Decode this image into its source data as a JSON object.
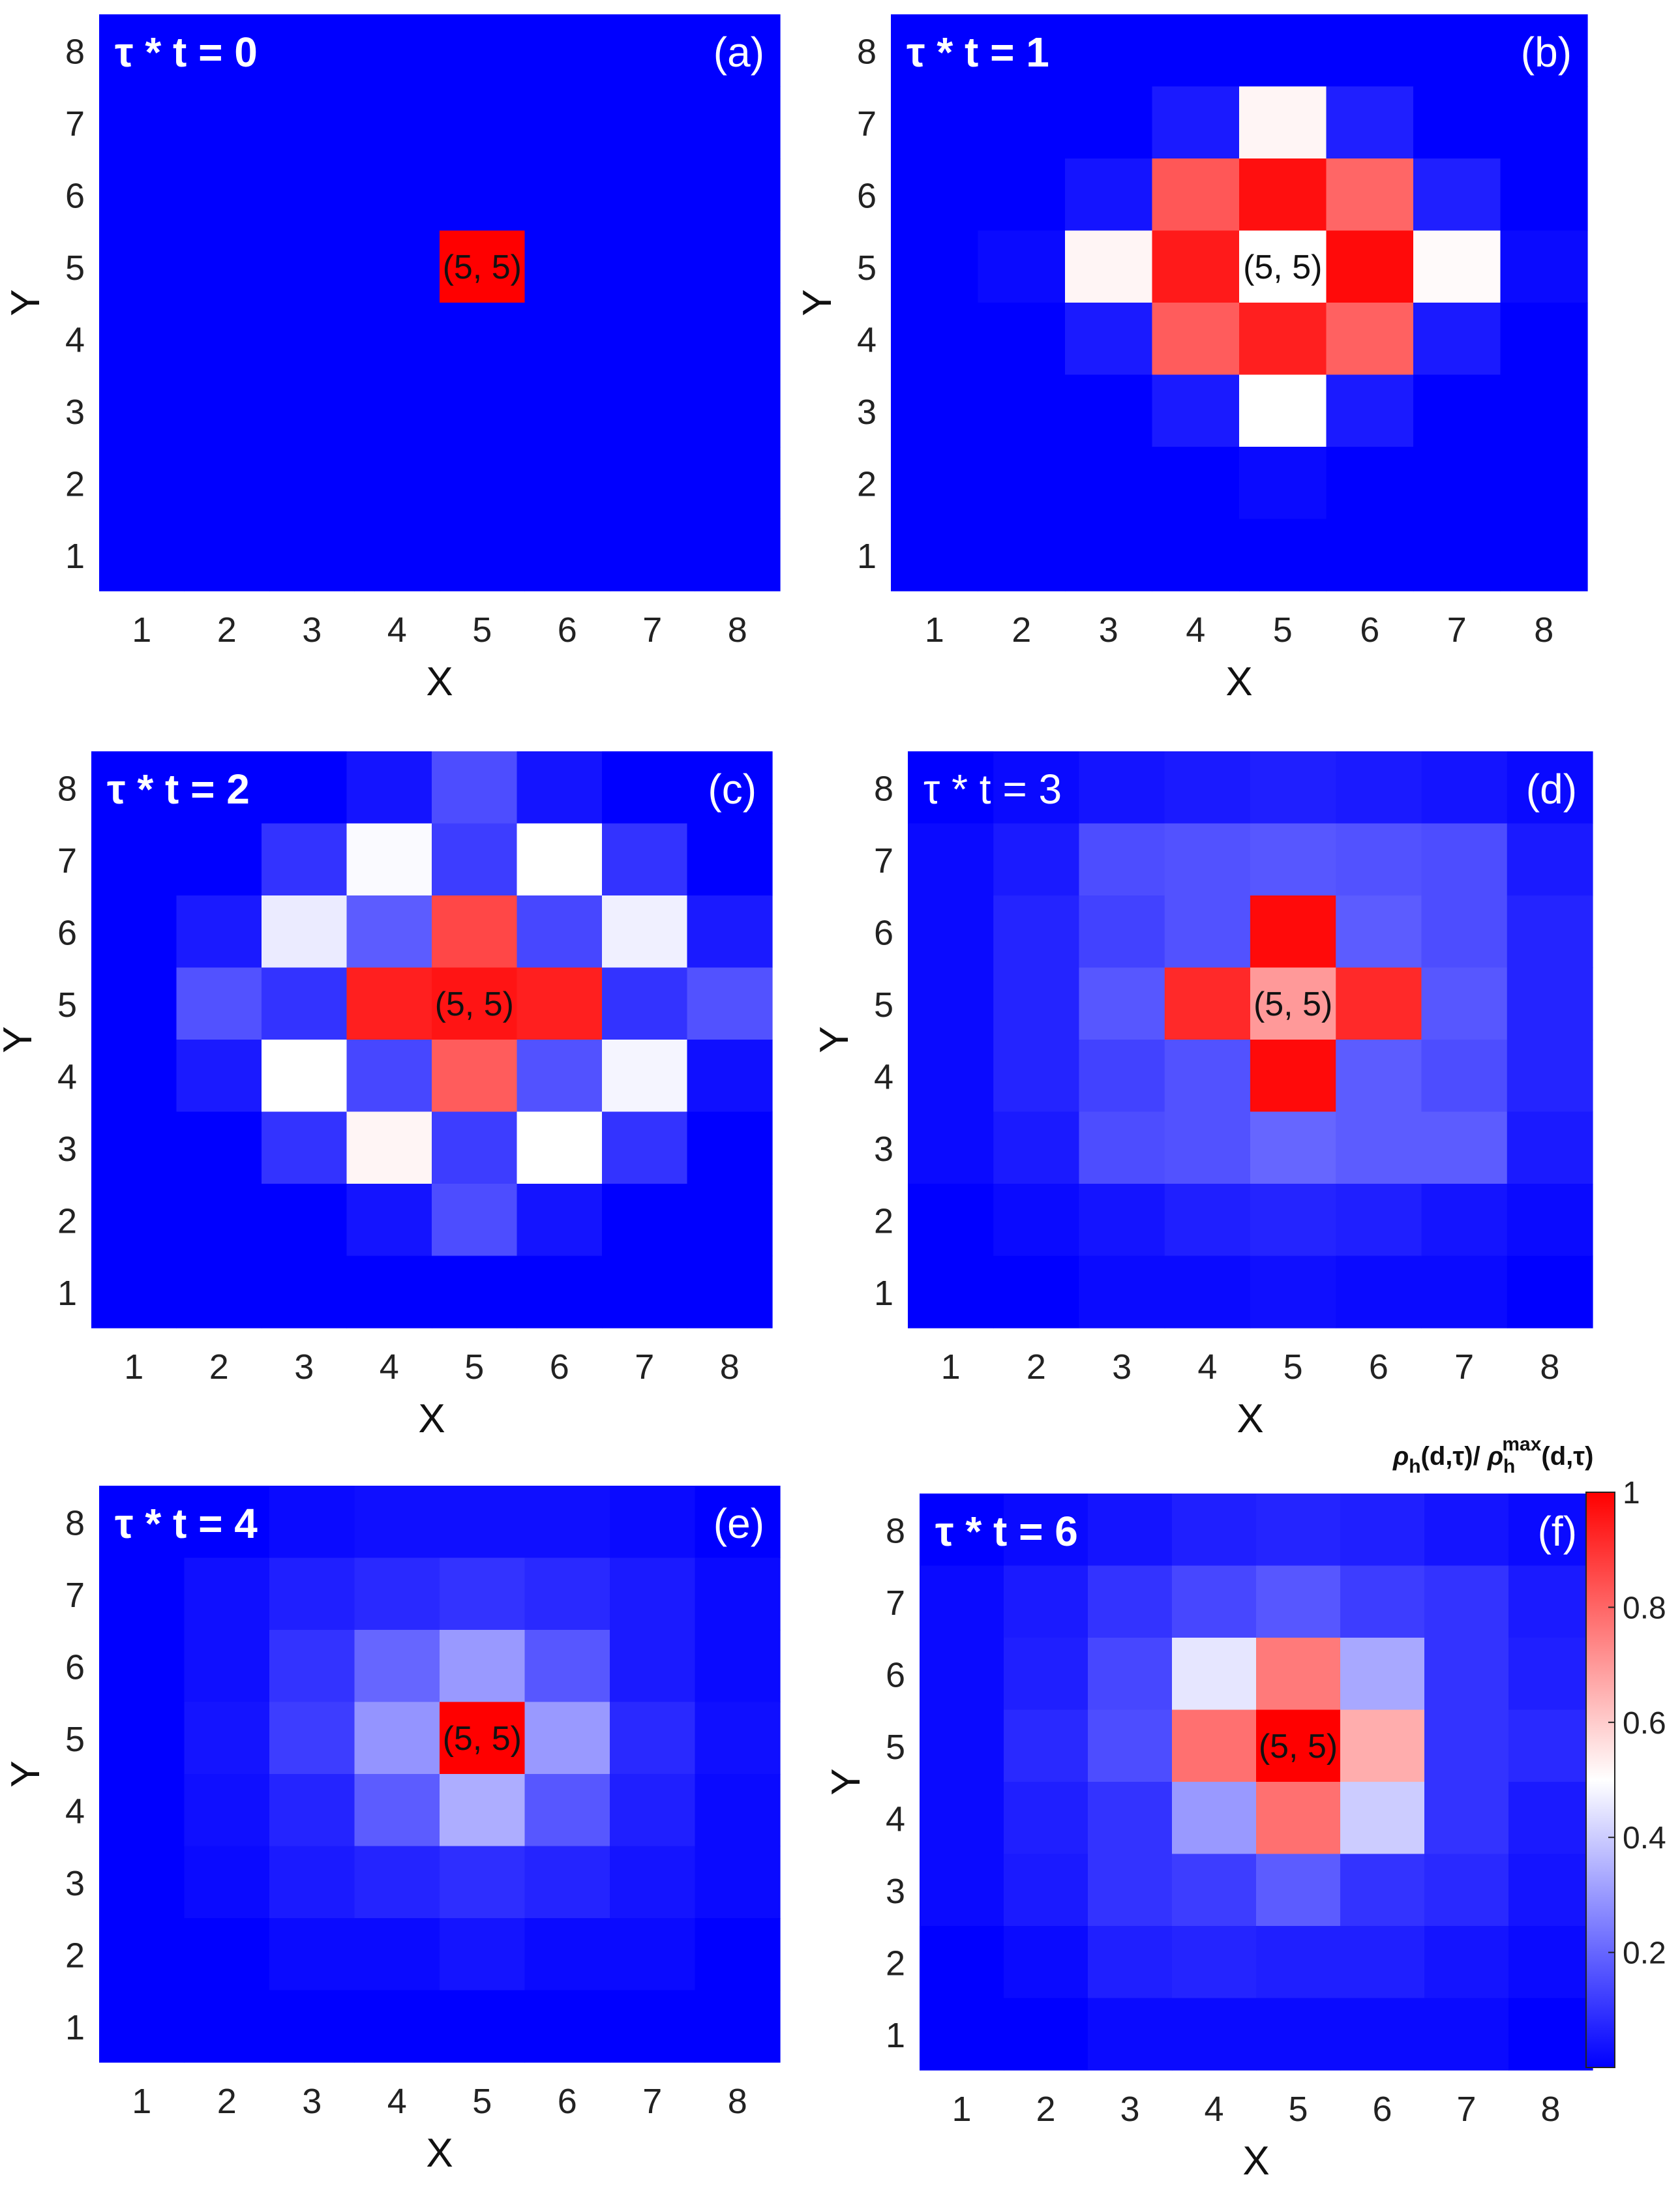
{
  "chart_data": [
    {
      "type": "heatmap",
      "panel_label": "(a)",
      "title": "τ * t = 0",
      "title_style": "bold",
      "xlabel": "X",
      "ylabel": "Y",
      "x_ticks": [
        "1",
        "2",
        "3",
        "4",
        "5",
        "6",
        "7",
        "8"
      ],
      "y_ticks": [
        "1",
        "2",
        "3",
        "4",
        "5",
        "6",
        "7",
        "8"
      ],
      "xlim": [
        0.5,
        8.5
      ],
      "ylim": [
        0.5,
        8.5
      ],
      "center_label": "(5, 5)",
      "center": [
        5,
        5
      ],
      "rows_y8_to_y1": [
        [
          0,
          0,
          0,
          0,
          0,
          0,
          0,
          0
        ],
        [
          0,
          0,
          0,
          0,
          0,
          0,
          0,
          0
        ],
        [
          0,
          0,
          0,
          0,
          0,
          0,
          0,
          0
        ],
        [
          0,
          0,
          0,
          0,
          1,
          0,
          0,
          0
        ],
        [
          0,
          0,
          0,
          0,
          0,
          0,
          0,
          0
        ],
        [
          0,
          0,
          0,
          0,
          0,
          0,
          0,
          0
        ],
        [
          0,
          0,
          0,
          0,
          0,
          0,
          0,
          0
        ],
        [
          0,
          0,
          0,
          0,
          0,
          0,
          0,
          0
        ]
      ]
    },
    {
      "type": "heatmap",
      "panel_label": "(b)",
      "title": "τ * t = 1",
      "title_style": "bold",
      "xlabel": "X",
      "ylabel": "Y",
      "x_ticks": [
        "1",
        "2",
        "3",
        "4",
        "5",
        "6",
        "7",
        "8"
      ],
      "y_ticks": [
        "1",
        "2",
        "3",
        "4",
        "5",
        "6",
        "7",
        "8"
      ],
      "xlim": [
        0.5,
        8.5
      ],
      "ylim": [
        0.5,
        8.5
      ],
      "center_label": "(5, 5)",
      "center": [
        5,
        5
      ],
      "rows_y8_to_y1": [
        [
          0,
          0,
          0,
          0,
          0,
          0,
          0,
          0
        ],
        [
          0,
          0,
          0,
          0.05,
          0.52,
          0.06,
          0,
          0
        ],
        [
          0,
          0,
          0.04,
          0.83,
          0.97,
          0.8,
          0.06,
          0
        ],
        [
          0,
          0.02,
          0.52,
          0.95,
          0.5,
          0.98,
          0.51,
          0.02
        ],
        [
          0,
          0,
          0.05,
          0.82,
          0.94,
          0.81,
          0.05,
          0
        ],
        [
          0,
          0,
          0,
          0.05,
          0.5,
          0.05,
          0,
          0
        ],
        [
          0,
          0,
          0,
          0,
          0.02,
          0,
          0,
          0
        ],
        [
          0,
          0,
          0,
          0,
          0,
          0,
          0,
          0
        ]
      ]
    },
    {
      "type": "heatmap",
      "panel_label": "(c)",
      "title": "τ * t = 2",
      "title_style": "bold",
      "xlabel": "X",
      "ylabel": "Y",
      "x_ticks": [
        "1",
        "2",
        "3",
        "4",
        "5",
        "6",
        "7",
        "8"
      ],
      "y_ticks": [
        "1",
        "2",
        "3",
        "4",
        "5",
        "6",
        "7",
        "8"
      ],
      "xlim": [
        0.5,
        8.5
      ],
      "ylim": [
        0.5,
        8.5
      ],
      "center_label": "(5, 5)",
      "center": [
        5,
        5
      ],
      "rows_y8_to_y1": [
        [
          0,
          0,
          0,
          0.04,
          0.15,
          0.04,
          0,
          0
        ],
        [
          0,
          0,
          0.1,
          0.49,
          0.12,
          0.5,
          0.1,
          0
        ],
        [
          0,
          0.05,
          0.46,
          0.18,
          0.86,
          0.14,
          0.47,
          0.05
        ],
        [
          0,
          0.16,
          0.1,
          0.94,
          0.96,
          0.94,
          0.1,
          0.16
        ],
        [
          0,
          0.05,
          0.5,
          0.14,
          0.82,
          0.16,
          0.48,
          0.03
        ],
        [
          0,
          0,
          0.1,
          0.52,
          0.12,
          0.5,
          0.1,
          0
        ],
        [
          0,
          0,
          0,
          0.04,
          0.15,
          0.04,
          0,
          0
        ],
        [
          0,
          0,
          0,
          0,
          0,
          0,
          0,
          0
        ]
      ]
    },
    {
      "type": "heatmap",
      "panel_label": "(d)",
      "title": "τ * t = 3",
      "title_style": "regular",
      "xlabel": "X",
      "ylabel": "Y",
      "x_ticks": [
        "1",
        "2",
        "3",
        "4",
        "5",
        "6",
        "7",
        "8"
      ],
      "y_ticks": [
        "1",
        "2",
        "3",
        "4",
        "5",
        "6",
        "7",
        "8"
      ],
      "xlim": [
        0.5,
        8.5
      ],
      "ylim": [
        0.5,
        8.5
      ],
      "center_label": "(5, 5)",
      "center": [
        5,
        5
      ],
      "rows_y8_to_y1": [
        [
          0,
          0.02,
          0.04,
          0.05,
          0.06,
          0.05,
          0.04,
          0.02
        ],
        [
          0.02,
          0.05,
          0.15,
          0.16,
          0.17,
          0.16,
          0.15,
          0.05
        ],
        [
          0.02,
          0.07,
          0.13,
          0.16,
          0.98,
          0.18,
          0.15,
          0.07
        ],
        [
          0.02,
          0.07,
          0.17,
          0.92,
          0.7,
          0.92,
          0.17,
          0.07
        ],
        [
          0.02,
          0.07,
          0.13,
          0.16,
          0.98,
          0.18,
          0.15,
          0.07
        ],
        [
          0.02,
          0.05,
          0.15,
          0.16,
          0.2,
          0.18,
          0.18,
          0.05
        ],
        [
          0,
          0.02,
          0.04,
          0.06,
          0.07,
          0.06,
          0.04,
          0.02
        ],
        [
          0,
          0,
          0.02,
          0.02,
          0.03,
          0.02,
          0.02,
          0
        ]
      ]
    },
    {
      "type": "heatmap",
      "panel_label": "(e)",
      "title": "τ * t = 4",
      "title_style": "bold",
      "xlabel": "X",
      "ylabel": "Y",
      "x_ticks": [
        "1",
        "2",
        "3",
        "4",
        "5",
        "6",
        "7",
        "8"
      ],
      "y_ticks": [
        "1",
        "2",
        "3",
        "4",
        "5",
        "6",
        "7",
        "8"
      ],
      "xlim": [
        0.5,
        8.5
      ],
      "ylim": [
        0.5,
        8.5
      ],
      "center_label": "(5, 5)",
      "center": [
        5,
        5
      ],
      "rows_y8_to_y1": [
        [
          0,
          0,
          0.02,
          0.03,
          0.03,
          0.03,
          0.02,
          0
        ],
        [
          0,
          0.03,
          0.06,
          0.08,
          0.1,
          0.08,
          0.05,
          0.02
        ],
        [
          0,
          0.03,
          0.1,
          0.2,
          0.3,
          0.17,
          0.05,
          0.02
        ],
        [
          0,
          0.04,
          0.12,
          0.29,
          1,
          0.3,
          0.08,
          0.03
        ],
        [
          0,
          0.03,
          0.07,
          0.18,
          0.34,
          0.17,
          0.06,
          0.02
        ],
        [
          0,
          0.02,
          0.05,
          0.07,
          0.09,
          0.07,
          0.04,
          0.02
        ],
        [
          0,
          0,
          0.02,
          0.02,
          0.04,
          0.02,
          0.02,
          0
        ],
        [
          0,
          0,
          0,
          0,
          0,
          0,
          0,
          0
        ]
      ]
    },
    {
      "type": "heatmap",
      "panel_label": "(f)",
      "title": "τ * t = 6",
      "title_style": "bold",
      "xlabel": "X",
      "ylabel": "Y",
      "x_ticks": [
        "1",
        "2",
        "3",
        "4",
        "5",
        "6",
        "7",
        "8"
      ],
      "y_ticks": [
        "1",
        "2",
        "3",
        "4",
        "5",
        "6",
        "7",
        "8"
      ],
      "xlim": [
        0.5,
        8.5
      ],
      "ylim": [
        0.5,
        8.5
      ],
      "center_label": "(5, 5)",
      "center": [
        5,
        5
      ],
      "rows_y8_to_y1": [
        [
          0,
          0.02,
          0.04,
          0.06,
          0.07,
          0.06,
          0.04,
          0.02
        ],
        [
          0.02,
          0.05,
          0.1,
          0.14,
          0.17,
          0.12,
          0.1,
          0.05
        ],
        [
          0.02,
          0.06,
          0.14,
          0.45,
          0.76,
          0.33,
          0.1,
          0.06
        ],
        [
          0.02,
          0.08,
          0.15,
          0.78,
          1,
          0.66,
          0.1,
          0.08
        ],
        [
          0.02,
          0.06,
          0.1,
          0.3,
          0.78,
          0.4,
          0.1,
          0.05
        ],
        [
          0.02,
          0.05,
          0.1,
          0.12,
          0.18,
          0.1,
          0.08,
          0.04
        ],
        [
          0,
          0.02,
          0.06,
          0.07,
          0.06,
          0.06,
          0.04,
          0.02
        ],
        [
          0,
          0,
          0.02,
          0.02,
          0.02,
          0.02,
          0.02,
          0
        ]
      ]
    }
  ],
  "colorbar": {
    "label": "ρh(d,τ)/ ρhmax(d,τ)",
    "label_parts": {
      "rho": "ρ",
      "sub": "h",
      "arg": "(d,τ)/ ",
      "sup": "max"
    },
    "ticks": [
      "0.2",
      "0.4",
      "0.6",
      "0.8",
      "1"
    ],
    "tick_values": [
      0.2,
      0.4,
      0.6,
      0.8,
      1
    ],
    "range": [
      0,
      1
    ],
    "colormap": [
      "#0000ff",
      "#ffffff",
      "#ff0000"
    ]
  }
}
